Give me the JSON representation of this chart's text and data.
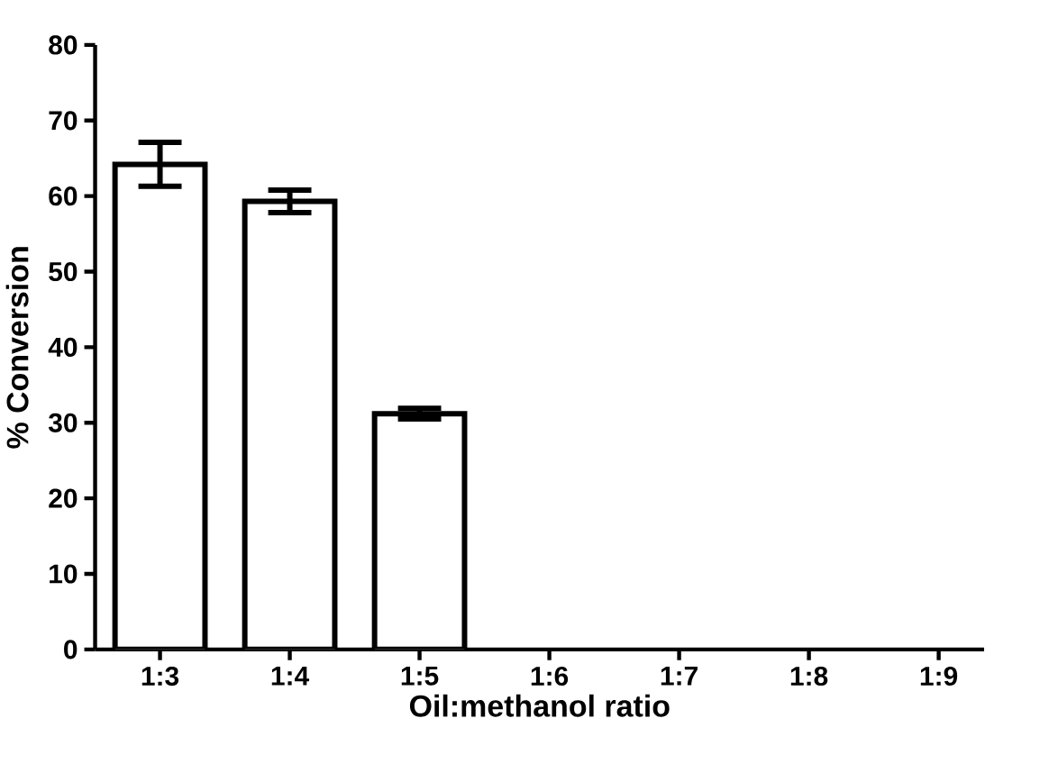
{
  "chart_data": {
    "type": "bar",
    "xlabel": "Oil:methanol ratio",
    "ylabel": "% Conversion",
    "categories": [
      "1:3",
      "1:4",
      "1:5",
      "1:6",
      "1:7",
      "1:8",
      "1:9"
    ],
    "values": [
      64.2,
      59.3,
      31.2,
      null,
      null,
      null,
      null
    ],
    "errors": [
      2.9,
      1.5,
      0.7,
      null,
      null,
      null,
      null
    ],
    "color": "#ffffff",
    "ylim": [
      0,
      80
    ],
    "yticks": [
      0,
      10,
      20,
      30,
      40,
      50,
      60,
      70,
      80
    ],
    "grid": false
  }
}
